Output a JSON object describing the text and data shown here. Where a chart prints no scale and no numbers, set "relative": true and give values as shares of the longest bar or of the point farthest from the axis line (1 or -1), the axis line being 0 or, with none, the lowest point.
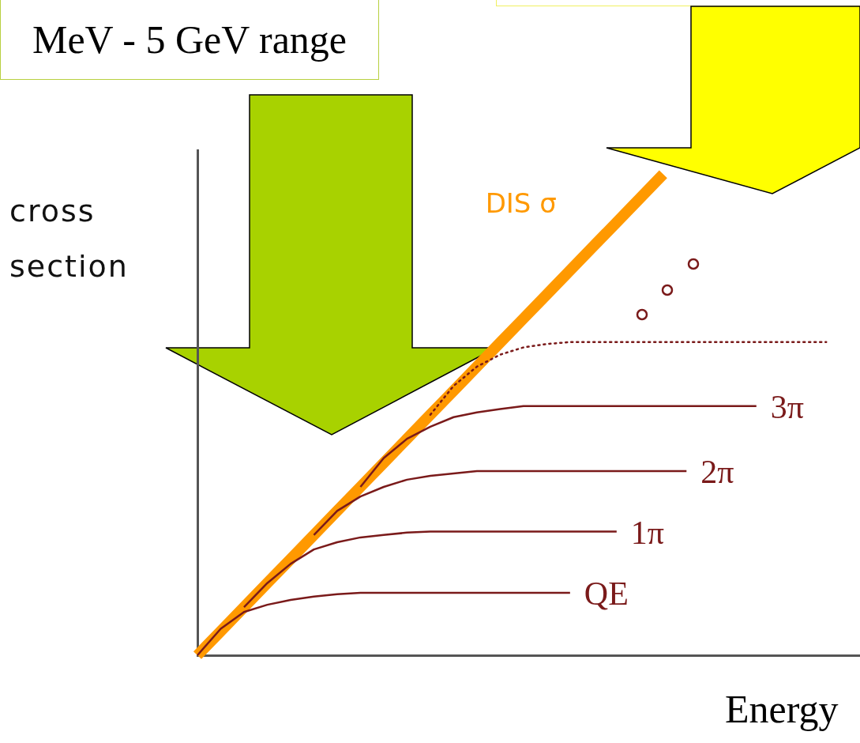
{
  "chart_data": {
    "type": "line",
    "relative": true,
    "xlabel": "Energy",
    "ylabel": "cross section",
    "annotations": [
      "MeV - 5 GeV range"
    ],
    "legend": false,
    "grid": false,
    "marker": "none",
    "categories": [
      null,
      null,
      null,
      null,
      null,
      null,
      null,
      null,
      null,
      null,
      null,
      null,
      null,
      null,
      null,
      null,
      null,
      null,
      null,
      null,
      null,
      null,
      null,
      null,
      null,
      null,
      null,
      null
    ],
    "series": [
      {
        "name": "DIS σ",
        "color": "#ff9900",
        "line_style": "solid",
        "values": [
          0,
          0.05,
          0.1,
          0.15,
          0.2,
          0.25,
          0.3,
          0.35,
          0.4,
          0.45,
          0.5,
          0.55,
          0.6,
          0.65,
          0.7,
          0.75,
          0.8,
          0.85,
          0.9,
          0.95,
          1,
          null,
          null,
          null,
          null,
          null,
          null,
          null
        ]
      },
      {
        "name": "QE",
        "color": "#7a1a1a",
        "line_style": "solid",
        "values": [
          0,
          0.055,
          0.09,
          0.105,
          0.115,
          0.122,
          0.127,
          0.13,
          0.13,
          0.13,
          0.13,
          0.13,
          0.13,
          0.13,
          0.13,
          0.13,
          0.13,
          null,
          null,
          null,
          null,
          null,
          null,
          null,
          null,
          null,
          null,
          null
        ]
      },
      {
        "name": "1π",
        "color": "#7a1a1a",
        "line_style": "solid",
        "values": [
          null,
          null,
          0.1,
          0.15,
          0.19,
          0.22,
          0.235,
          0.245,
          0.25,
          0.255,
          0.257,
          0.257,
          0.257,
          0.257,
          0.257,
          0.257,
          0.257,
          0.257,
          0.257,
          null,
          null,
          null,
          null,
          null,
          null,
          null,
          null,
          null
        ]
      },
      {
        "name": "2π",
        "color": "#7a1a1a",
        "line_style": "solid",
        "values": [
          null,
          null,
          null,
          null,
          null,
          0.25,
          0.3,
          0.33,
          0.35,
          0.365,
          0.373,
          0.378,
          0.383,
          0.383,
          0.383,
          0.383,
          0.383,
          0.383,
          0.383,
          0.383,
          0.383,
          0.383,
          null,
          null,
          null,
          null,
          null,
          null
        ]
      },
      {
        "name": "3π",
        "color": "#7a1a1a",
        "line_style": "solid",
        "values": [
          null,
          null,
          null,
          null,
          null,
          null,
          null,
          0.35,
          0.41,
          0.45,
          0.475,
          0.495,
          0.505,
          0.512,
          0.518,
          0.518,
          0.518,
          0.518,
          0.518,
          0.518,
          0.518,
          0.518,
          0.518,
          0.518,
          0.518,
          null,
          null,
          null
        ]
      },
      {
        "color": "#7a1a1a",
        "line_style": "dotted",
        "values": [
          null,
          null,
          null,
          null,
          null,
          null,
          null,
          null,
          null,
          null,
          0.5,
          0.56,
          0.6,
          0.625,
          0.64,
          0.647,
          0.651,
          0.651,
          0.651,
          0.651,
          0.651,
          0.651,
          0.651,
          0.651,
          0.651,
          0.651,
          0.651,
          0.651
        ]
      }
    ]
  }
}
